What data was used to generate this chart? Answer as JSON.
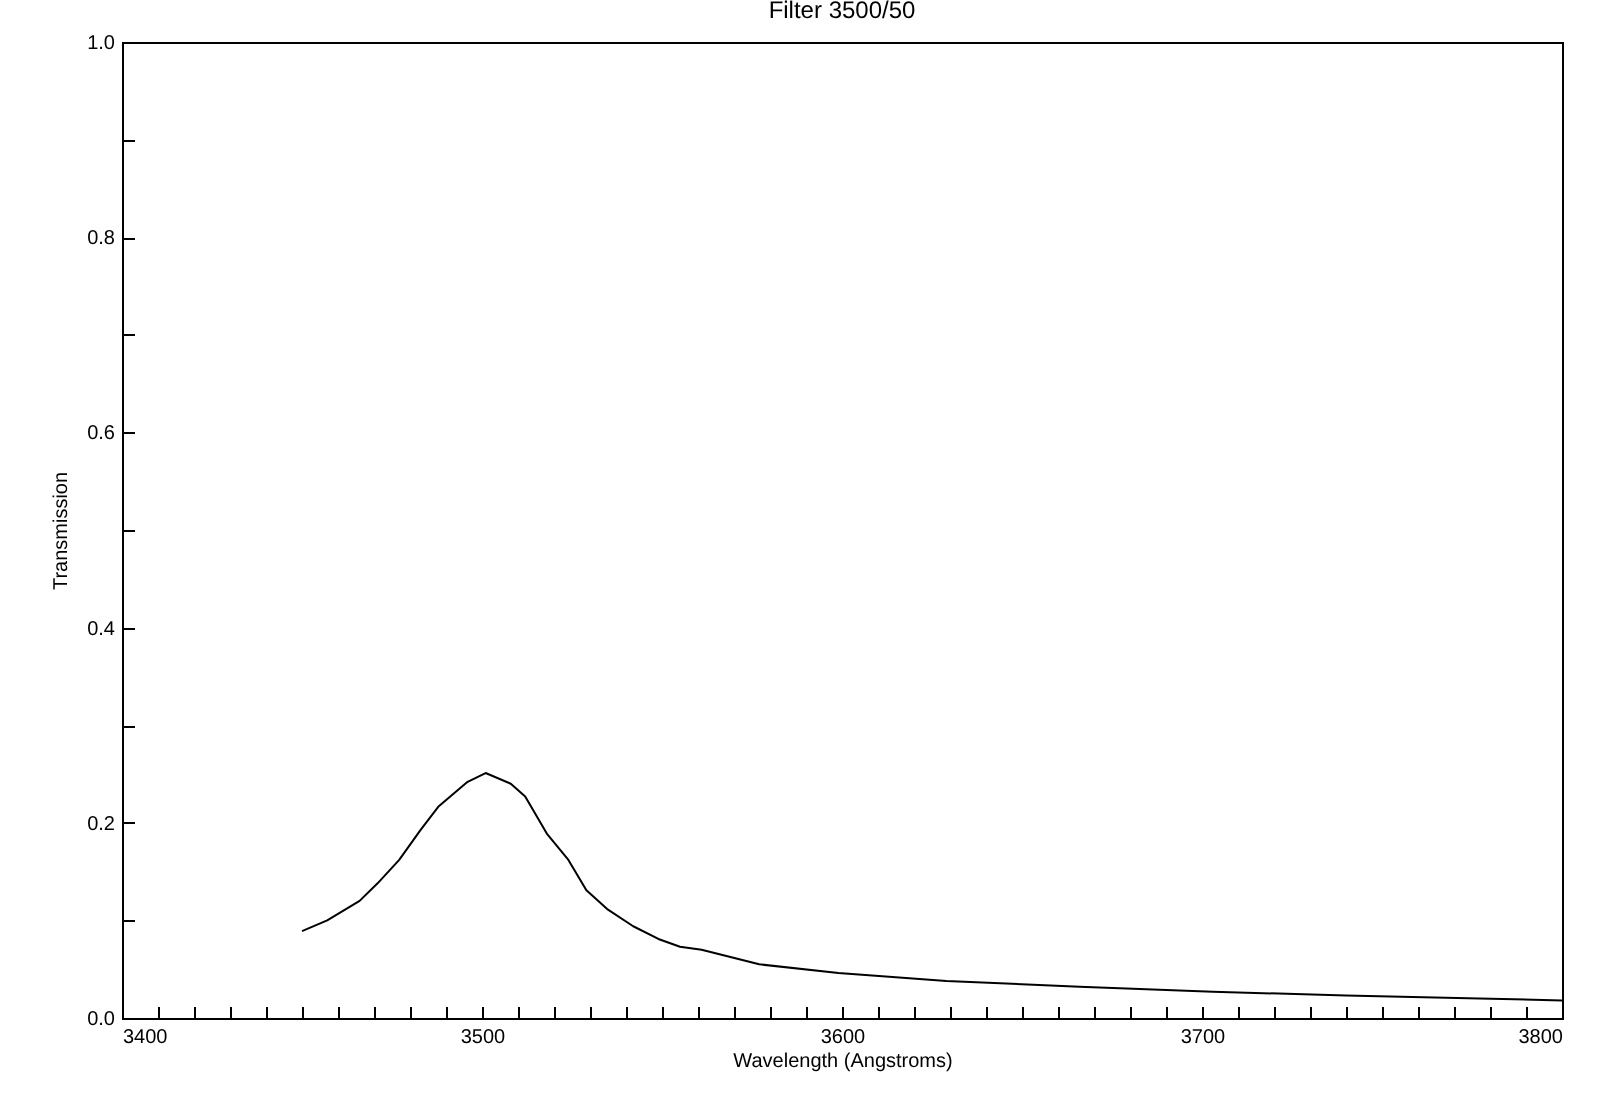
{
  "chart_data": {
    "type": "line",
    "title": "Filter 3500/50",
    "xlabel": "Wavelength (Angstroms)",
    "ylabel": "Transmission",
    "xlim": [
      3400,
      3800
    ],
    "xticks": [
      3400,
      {
        "value": 3410,
        "label": null
      },
      {
        "value": 3420,
        "label": null
      },
      {
        "value": 3430,
        "label": null
      },
      {
        "value": 3440,
        "label": null
      },
      {
        "value": 3450,
        "label": null
      },
      {
        "value": 3460,
        "label": null
      },
      {
        "value": 3470,
        "label": null
      },
      {
        "value": 3480,
        "label": null
      },
      {
        "value": 3490,
        "label": null
      },
      3500,
      {
        "value": 3510,
        "label": null
      },
      {
        "value": 3520,
        "label": null
      },
      {
        "value": 3530,
        "label": null
      },
      {
        "value": 3540,
        "label": null
      },
      {
        "value": 3550,
        "label": null
      },
      {
        "value": 3560,
        "label": null
      },
      {
        "value": 3570,
        "label": null
      },
      {
        "value": 3580,
        "label": null
      },
      {
        "value": 3590,
        "label": null
      },
      3600,
      {
        "value": 3610,
        "label": null
      },
      {
        "value": 3620,
        "label": null
      },
      {
        "value": 3630,
        "label": null
      },
      {
        "value": 3640,
        "label": null
      },
      {
        "value": 3650,
        "label": null
      },
      {
        "value": 3660,
        "label": null
      },
      {
        "value": 3670,
        "label": null
      },
      {
        "value": 3680,
        "label": null
      },
      {
        "value": 3690,
        "label": null
      },
      3700,
      {
        "value": 3710,
        "label": null
      },
      {
        "value": 3720,
        "label": null
      },
      {
        "value": 3730,
        "label": null
      },
      {
        "value": 3740,
        "label": null
      },
      {
        "value": 3750,
        "label": null
      },
      {
        "value": 3760,
        "label": null
      },
      {
        "value": 3770,
        "label": null
      },
      {
        "value": 3780,
        "label": null
      },
      {
        "value": 3790,
        "label": null
      },
      3800
    ],
    "ylim": [
      0,
      1
    ],
    "yticks": [
      {
        "value": 0,
        "label": "0.0"
      },
      {
        "value": 0.1,
        "label": null
      },
      {
        "value": 0.2,
        "label": "0.2"
      },
      {
        "value": 0.3,
        "label": null
      },
      {
        "value": 0.4,
        "label": "0.4"
      },
      {
        "value": 0.5,
        "label": null
      },
      {
        "value": 0.6,
        "label": "0.6"
      },
      {
        "value": 0.7,
        "label": null
      },
      {
        "value": 0.8,
        "label": "0.8"
      },
      {
        "value": 0.9,
        "label": null
      },
      {
        "value": 1,
        "label": "1.0"
      }
    ],
    "grid": false,
    "legend": false,
    "marker": "none",
    "line_style": "solid",
    "x": [
      3450,
      3457,
      3466,
      3471,
      3477,
      3483,
      3488,
      3496,
      3501,
      3508,
      3512,
      3518,
      3524,
      3529,
      3535,
      3542,
      3549,
      3555,
      3561,
      3577,
      3599,
      3629,
      3666,
      3703,
      3740,
      3777,
      3800
    ],
    "series": [
      {
        "color": "#000000",
        "values": [
          0.089,
          0.1,
          0.12,
          0.138,
          0.162,
          0.193,
          0.217,
          0.242,
          0.251,
          0.24,
          0.227,
          0.189,
          0.162,
          0.131,
          0.111,
          0.094,
          0.081,
          0.073,
          0.07,
          0.055,
          0.046,
          0.038,
          0.032,
          0.027,
          0.023,
          0.02,
          0.018
        ]
      }
    ]
  }
}
